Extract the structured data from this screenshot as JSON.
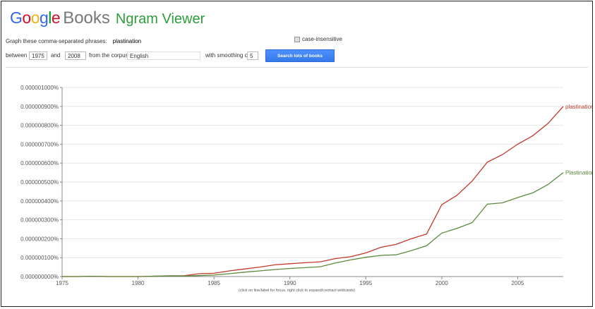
{
  "header": {
    "logo_google": [
      "G",
      "o",
      "o",
      "g",
      "l",
      "e"
    ],
    "logo_google_colors": [
      "#3369e8",
      "#d50f25",
      "#eeb211",
      "#3369e8",
      "#009925",
      "#d50f25"
    ],
    "logo_books": "Books",
    "app_name": "Ngram Viewer"
  },
  "query": {
    "label": "Graph these comma-separated phrases:",
    "phrases": "plastination",
    "case_insensitive_label": "case-insensitive",
    "case_insensitive_checked": true
  },
  "range": {
    "between_label": "between",
    "start_year": "1975",
    "and_label": "and",
    "end_year": "2008",
    "corpus_label": "from the corpus",
    "corpus": "English",
    "smoothing_label": "with smoothing of",
    "smoothing": "5",
    "search_button": "Search lots of books"
  },
  "footnote": "(click on line/label for focus, right click to expand/contract wildcards)",
  "chart_data": {
    "type": "line",
    "title": "",
    "xlabel": "",
    "ylabel": "",
    "xlim": [
      1975,
      2008
    ],
    "ylim": [
      0,
      1e-06
    ],
    "x_ticks": [
      1975,
      1980,
      1985,
      1990,
      1995,
      2000,
      2005
    ],
    "y_ticks": [
      "0.000000000%",
      "0.000000100%",
      "0.000000200%",
      "0.000000300%",
      "0.000000400%",
      "0.000000500%",
      "0.000000600%",
      "0.000000700%",
      "0.000000800%",
      "0.000000900%",
      "0.000001000%"
    ],
    "y_tick_values": [
      0,
      1e-07,
      2e-07,
      3e-07,
      4e-07,
      5e-07,
      6e-07,
      7e-07,
      8e-07,
      9e-07,
      1e-06
    ],
    "grid": true,
    "x": [
      1975,
      1976,
      1977,
      1978,
      1979,
      1980,
      1981,
      1982,
      1983,
      1984,
      1985,
      1986,
      1987,
      1988,
      1989,
      1990,
      1991,
      1992,
      1993,
      1994,
      1995,
      1996,
      1997,
      1998,
      1999,
      2000,
      2001,
      2002,
      2003,
      2004,
      2005,
      2006,
      2007,
      2008
    ],
    "series": [
      {
        "name": "plastination",
        "color": "#c0392b",
        "values": [
          0,
          0,
          1e-09,
          0,
          0,
          0,
          2e-09,
          4e-09,
          4e-09,
          1.5e-08,
          1.7e-08,
          3e-08,
          4e-08,
          5e-08,
          6.2e-08,
          6.8e-08,
          7.3e-08,
          7.8e-08,
          9.5e-08,
          1.05e-07,
          1.25e-07,
          1.55e-07,
          1.7e-07,
          2e-07,
          2.25e-07,
          3.8e-07,
          4.3e-07,
          5.05e-07,
          6.05e-07,
          6.45e-07,
          7e-07,
          7.45e-07,
          8.1e-07,
          9e-07
        ]
      },
      {
        "name": "Plastination",
        "color": "#5b8a3c",
        "values": [
          0,
          0,
          2e-09,
          0,
          0,
          0,
          2e-09,
          3e-09,
          3e-09,
          5e-09,
          8e-09,
          1.5e-08,
          2.3e-08,
          3e-08,
          3.7e-08,
          4.3e-08,
          4.7e-08,
          5.2e-08,
          7.2e-08,
          8.8e-08,
          1.02e-07,
          1.12e-07,
          1.15e-07,
          1.37e-07,
          1.63e-07,
          2.3e-07,
          2.55e-07,
          2.85e-07,
          3.83e-07,
          3.9e-07,
          4.18e-07,
          4.43e-07,
          4.87e-07,
          5.5e-07
        ]
      }
    ]
  }
}
